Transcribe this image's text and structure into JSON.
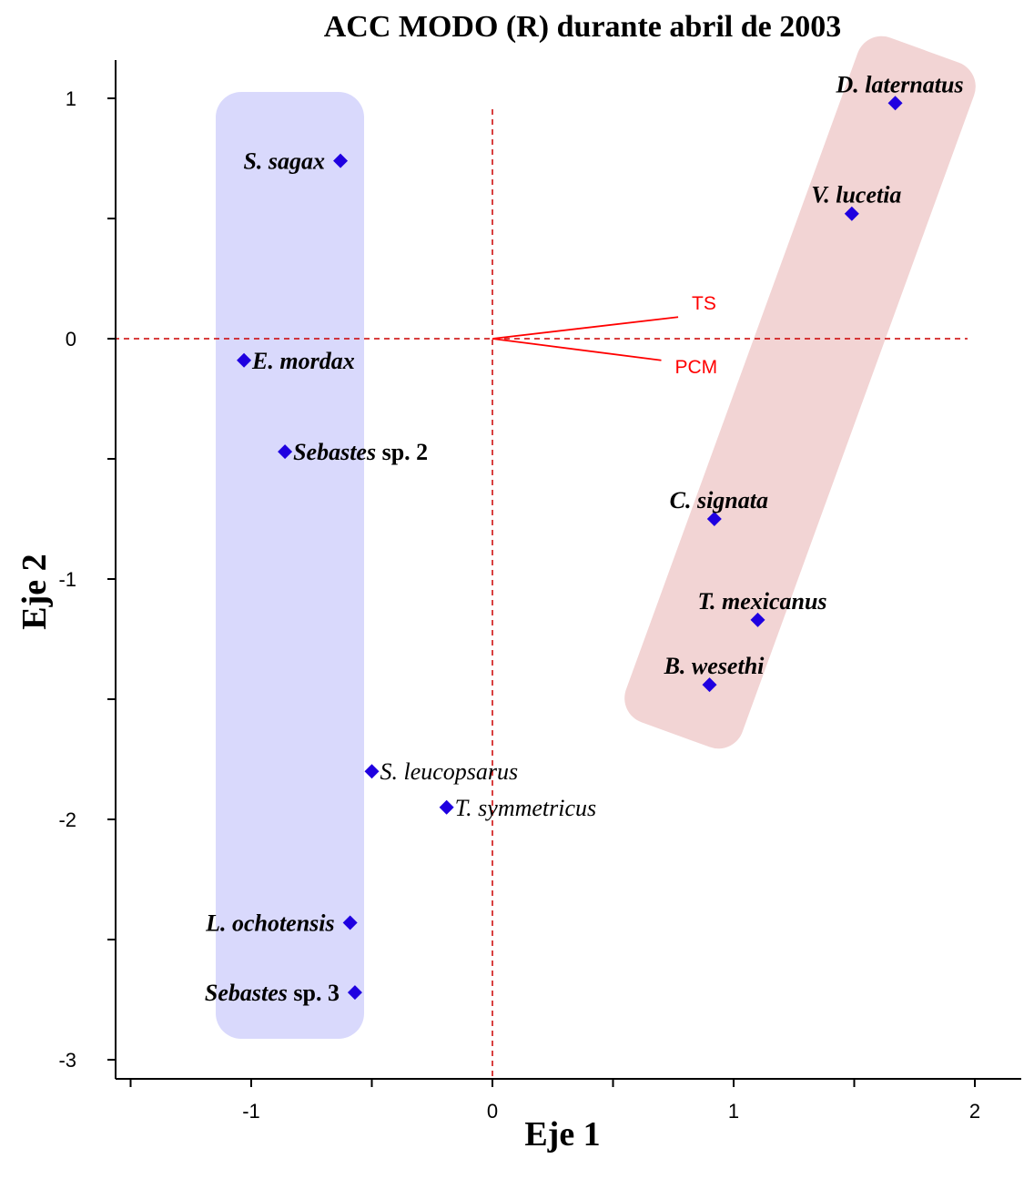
{
  "chart_data": {
    "type": "scatter",
    "title": "ACC MODO (R) durante abril de 2003",
    "xlabel": "Eje 1",
    "ylabel": "Eje 2",
    "xlim": [
      -1.5,
      2.2
    ],
    "ylim": [
      -3.2,
      1.2
    ],
    "x_ticks": [
      -1,
      0,
      1,
      2
    ],
    "y_ticks": [
      1,
      0,
      -1,
      -2,
      -3
    ],
    "points": [
      {
        "name": "S. sagax",
        "suffix": "",
        "x": -0.63,
        "y": 0.74,
        "label_pos": "left",
        "bold": true
      },
      {
        "name": "E. mordax",
        "suffix": "",
        "x": -1.03,
        "y": -0.09,
        "label_pos": "right",
        "bold": true
      },
      {
        "name": "Sebastes",
        "suffix": " sp. 2",
        "x": -0.86,
        "y": -0.47,
        "label_pos": "right",
        "bold": true
      },
      {
        "name": "S. leucopsarus",
        "suffix": "",
        "x": -0.5,
        "y": -1.8,
        "label_pos": "right",
        "bold": false
      },
      {
        "name": "T. symmetricus",
        "suffix": "",
        "x": -0.19,
        "y": -1.95,
        "label_pos": "right",
        "bold": false
      },
      {
        "name": "L. ochotensis",
        "suffix": "",
        "x": -0.59,
        "y": -2.43,
        "label_pos": "left",
        "bold": true
      },
      {
        "name": "Sebastes",
        "suffix": " sp. 3",
        "x": -0.57,
        "y": -2.72,
        "label_pos": "left",
        "bold": true
      },
      {
        "name": "D. laternatus",
        "suffix": "",
        "x": 1.67,
        "y": 0.98,
        "label_pos": "above",
        "bold": true
      },
      {
        "name": "V. lucetia",
        "suffix": "",
        "x": 1.49,
        "y": 0.52,
        "label_pos": "above",
        "bold": true
      },
      {
        "name": "C. signata",
        "suffix": "",
        "x": 0.92,
        "y": -0.75,
        "label_pos": "above",
        "bold": true
      },
      {
        "name": "T. mexicanus",
        "suffix": "",
        "x": 1.1,
        "y": -1.17,
        "label_pos": "above",
        "bold": true
      },
      {
        "name": "B. wesethi",
        "suffix": "",
        "x": 0.9,
        "y": -1.44,
        "label_pos": "above",
        "bold": true
      }
    ],
    "vectors": [
      {
        "name": "TS",
        "x": 0.77,
        "y": 0.09
      },
      {
        "name": "PCM",
        "x": 0.7,
        "y": -0.09
      }
    ],
    "reference_lines": {
      "x": 0,
      "y": 0,
      "style": "dashed",
      "color": "#cc0000"
    },
    "groups": [
      {
        "name": "group-left",
        "color": "#d9d9fc"
      },
      {
        "name": "group-right",
        "color": "#f2d4d4"
      }
    ],
    "point_color": "#1f00e0",
    "grid": false
  }
}
